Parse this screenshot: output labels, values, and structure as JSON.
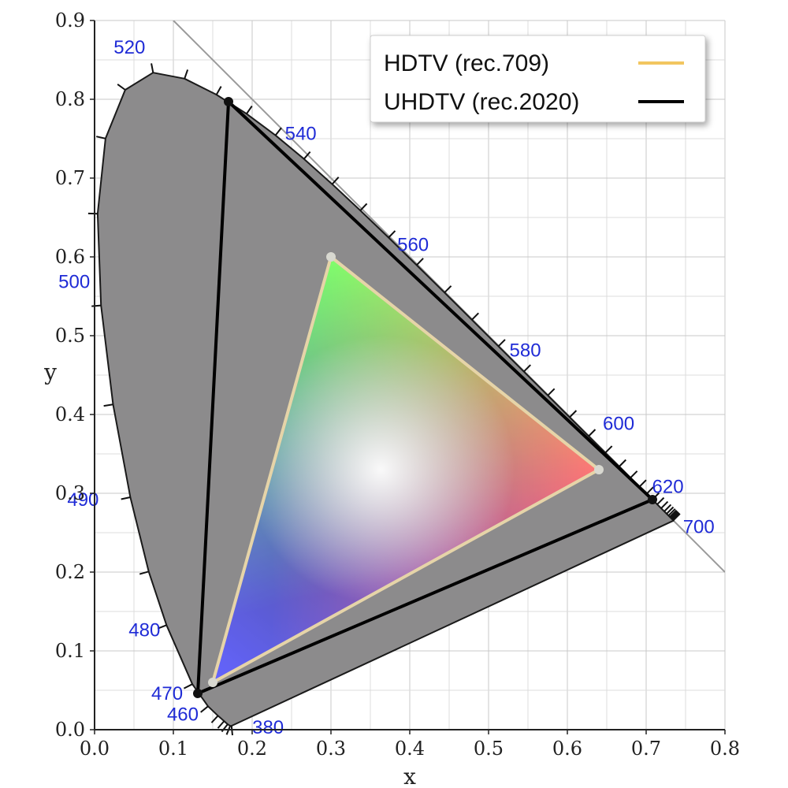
{
  "chart_data": {
    "type": "scatter",
    "title": "",
    "xlabel": "x",
    "ylabel": "y",
    "xlim": [
      0.0,
      0.8
    ],
    "ylim": [
      0.0,
      0.9
    ],
    "grid": true,
    "x_ticks": [
      "0.0",
      "0.1",
      "0.2",
      "0.3",
      "0.4",
      "0.5",
      "0.6",
      "0.7",
      "0.8"
    ],
    "y_ticks": [
      "0.0",
      "0.1",
      "0.2",
      "0.3",
      "0.4",
      "0.5",
      "0.6",
      "0.7",
      "0.8",
      "0.9"
    ],
    "x_tick_values": [
      0.0,
      0.1,
      0.2,
      0.3,
      0.4,
      0.5,
      0.6,
      0.7,
      0.8
    ],
    "y_tick_values": [
      0.0,
      0.1,
      0.2,
      0.3,
      0.4,
      0.5,
      0.6,
      0.7,
      0.8,
      0.9
    ],
    "legend_position": "top-right",
    "legend": [
      {
        "label": "HDTV (rec.709)",
        "color": "#f2c660"
      },
      {
        "label": "UHDTV (rec.2020)",
        "color": "#000000"
      }
    ],
    "spectral_locus": [
      [
        0.1741,
        0.005
      ],
      [
        0.1738,
        0.0049
      ],
      [
        0.1721,
        0.0048
      ],
      [
        0.1689,
        0.0069
      ],
      [
        0.1644,
        0.0109
      ],
      [
        0.1566,
        0.0177
      ],
      [
        0.144,
        0.0297
      ],
      [
        0.1241,
        0.0578
      ],
      [
        0.0913,
        0.1327
      ],
      [
        0.0687,
        0.2007
      ],
      [
        0.0454,
        0.295
      ],
      [
        0.0235,
        0.4127
      ],
      [
        0.0082,
        0.5384
      ],
      [
        0.0039,
        0.6548
      ],
      [
        0.0139,
        0.7502
      ],
      [
        0.0389,
        0.812
      ],
      [
        0.0743,
        0.8338
      ],
      [
        0.1142,
        0.8262
      ],
      [
        0.1547,
        0.8059
      ],
      [
        0.1929,
        0.7816
      ],
      [
        0.2296,
        0.7543
      ],
      [
        0.2658,
        0.7243
      ],
      [
        0.3016,
        0.6923
      ],
      [
        0.3373,
        0.6589
      ],
      [
        0.3731,
        0.6245
      ],
      [
        0.4087,
        0.5896
      ],
      [
        0.4441,
        0.5547
      ],
      [
        0.4788,
        0.5202
      ],
      [
        0.5125,
        0.4866
      ],
      [
        0.5448,
        0.4544
      ],
      [
        0.5752,
        0.4242
      ],
      [
        0.6029,
        0.3965
      ],
      [
        0.627,
        0.3725
      ],
      [
        0.6482,
        0.3514
      ],
      [
        0.6658,
        0.334
      ],
      [
        0.6801,
        0.3197
      ],
      [
        0.6915,
        0.3083
      ],
      [
        0.7006,
        0.2993
      ],
      [
        0.7079,
        0.292
      ],
      [
        0.714,
        0.2859
      ],
      [
        0.719,
        0.2809
      ],
      [
        0.723,
        0.277
      ],
      [
        0.726,
        0.274
      ],
      [
        0.7283,
        0.2717
      ],
      [
        0.73,
        0.27
      ],
      [
        0.7311,
        0.2689
      ],
      [
        0.732,
        0.268
      ],
      [
        0.7327,
        0.2673
      ],
      [
        0.7334,
        0.2666
      ],
      [
        0.734,
        0.266
      ],
      [
        0.7344,
        0.2656
      ],
      [
        0.7347,
        0.2653
      ]
    ],
    "wavelength_labels": [
      {
        "text": "520",
        "x": 0.0743,
        "y": 0.8338
      },
      {
        "text": "540",
        "x": 0.2296,
        "y": 0.7543
      },
      {
        "text": "560",
        "x": 0.3731,
        "y": 0.6245
      },
      {
        "text": "580",
        "x": 0.5125,
        "y": 0.4866
      },
      {
        "text": "600",
        "x": 0.627,
        "y": 0.3725
      },
      {
        "text": "620",
        "x": 0.6915,
        "y": 0.3083
      },
      {
        "text": "700",
        "x": 0.7347,
        "y": 0.2653
      },
      {
        "text": "500",
        "x": 0.0082,
        "y": 0.5384
      },
      {
        "text": "490",
        "x": 0.0454,
        "y": 0.295
      },
      {
        "text": "480",
        "x": 0.0913,
        "y": 0.1327
      },
      {
        "text": "470",
        "x": 0.1241,
        "y": 0.0578
      },
      {
        "text": "460",
        "x": 0.144,
        "y": 0.0297
      },
      {
        "text": "380",
        "x": 0.1741,
        "y": 0.005
      }
    ],
    "series": [
      {
        "name": "HDTV (rec.709)",
        "color": "#e6d4a8",
        "points": [
          [
            0.64,
            0.33
          ],
          [
            0.3,
            0.6
          ],
          [
            0.15,
            0.06
          ]
        ]
      },
      {
        "name": "UHDTV (rec.2020)",
        "color": "#000000",
        "points": [
          [
            0.708,
            0.292
          ],
          [
            0.17,
            0.797
          ],
          [
            0.131,
            0.046
          ]
        ]
      }
    ],
    "line_x_plus_y_equals_1": true
  }
}
